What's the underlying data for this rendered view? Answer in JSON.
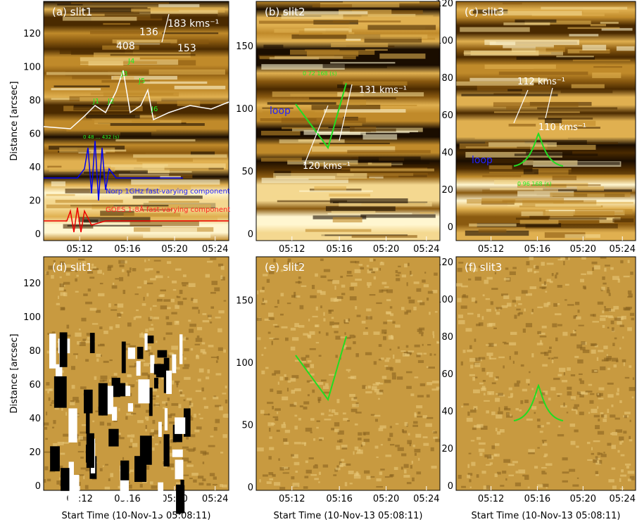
{
  "y_axis_label": "Distance [arcsec]",
  "x_axis_label": "Start Time (10-Nov-13 05:08:11)",
  "panels": [
    {
      "label": "(a) slit1",
      "yticks": [
        "0",
        "20",
        "40",
        "60",
        "80",
        "100",
        "120"
      ],
      "xticks": [
        "05:12",
        "05:16",
        "05:20",
        "05:24"
      ],
      "annotations": [
        "408",
        "136",
        "183 kms⁻¹",
        "153",
        "J1",
        "J2",
        "J3",
        "J4",
        "J5",
        "J6",
        "0 48 ... 432 (s)",
        "Norp 1GHz fast-varying component",
        "GOES 1-8Å fast-varying component"
      ]
    },
    {
      "label": "(b) slit2",
      "yticks": [
        "0",
        "50",
        "100",
        "150"
      ],
      "xticks": [
        "05:12",
        "05:16",
        "05:20",
        "05:24"
      ],
      "annotations": [
        "0   72   168 (s)",
        "131 kms⁻¹",
        "loop",
        "120 kms⁻¹"
      ]
    },
    {
      "label": "(c) slit3",
      "yticks": [
        "0",
        "20",
        "40",
        "60",
        "80",
        "100",
        "120"
      ],
      "xticks": [
        "05:12",
        "05:16",
        "05:20",
        "05:24"
      ],
      "annotations": [
        "112 kms⁻¹",
        "110 kms⁻¹",
        "loop",
        "0  96  168 (s)"
      ]
    },
    {
      "label": "(d) slit1",
      "yticks": [
        "0",
        "20",
        "40",
        "60",
        "80",
        "100",
        "120"
      ],
      "xticks": [
        "05:12",
        "05:16",
        "05:20",
        "05:24"
      ],
      "annotations": []
    },
    {
      "label": "(e) slit2",
      "yticks": [
        "0",
        "50",
        "100",
        "150"
      ],
      "xticks": [
        "05:12",
        "05:16",
        "05:20",
        "05:24"
      ],
      "annotations": []
    },
    {
      "label": "(f) slit3",
      "yticks": [
        "0",
        "20",
        "40",
        "60",
        "80",
        "100",
        "120"
      ],
      "xticks": [
        "05:12",
        "05:16",
        "05:20",
        "05:24"
      ],
      "annotations": []
    }
  ]
}
